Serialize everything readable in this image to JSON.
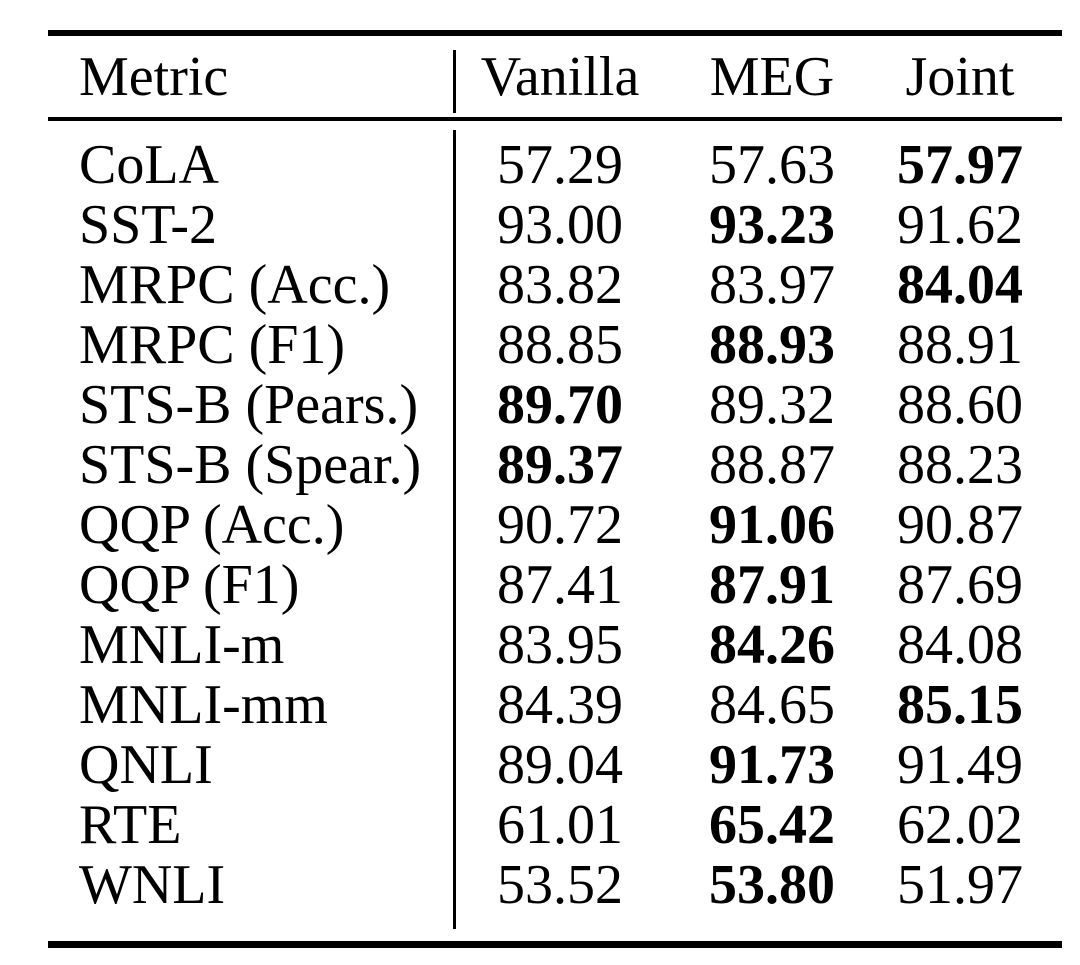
{
  "colors": {
    "ink": "#000000",
    "background": "#ffffff"
  },
  "table": {
    "columns": [
      "Metric",
      "Vanilla",
      "MEG",
      "Joint"
    ],
    "rows": [
      {
        "metric": "CoLA",
        "values": [
          "57.29",
          "57.63",
          "57.97"
        ],
        "bold_index": 2
      },
      {
        "metric": "SST-2",
        "values": [
          "93.00",
          "93.23",
          "91.62"
        ],
        "bold_index": 1
      },
      {
        "metric": "MRPC (Acc.)",
        "values": [
          "83.82",
          "83.97",
          "84.04"
        ],
        "bold_index": 2
      },
      {
        "metric": "MRPC (F1)",
        "values": [
          "88.85",
          "88.93",
          "88.91"
        ],
        "bold_index": 1
      },
      {
        "metric": "STS-B (Pears.)",
        "values": [
          "89.70",
          "89.32",
          "88.60"
        ],
        "bold_index": 0
      },
      {
        "metric": "STS-B (Spear.)",
        "values": [
          "89.37",
          "88.87",
          "88.23"
        ],
        "bold_index": 0
      },
      {
        "metric": "QQP (Acc.)",
        "values": [
          "90.72",
          "91.06",
          "90.87"
        ],
        "bold_index": 1
      },
      {
        "metric": "QQP (F1)",
        "values": [
          "87.41",
          "87.91",
          "87.69"
        ],
        "bold_index": 1
      },
      {
        "metric": "MNLI-m",
        "values": [
          "83.95",
          "84.26",
          "84.08"
        ],
        "bold_index": 1
      },
      {
        "metric": "MNLI-mm",
        "values": [
          "84.39",
          "84.65",
          "85.15"
        ],
        "bold_index": 2
      },
      {
        "metric": "QNLI",
        "values": [
          "89.04",
          "91.73",
          "91.49"
        ],
        "bold_index": 1
      },
      {
        "metric": "RTE",
        "values": [
          "61.01",
          "65.42",
          "62.02"
        ],
        "bold_index": 1
      },
      {
        "metric": "WNLI",
        "values": [
          "53.52",
          "53.80",
          "51.97"
        ],
        "bold_index": 1
      }
    ]
  }
}
